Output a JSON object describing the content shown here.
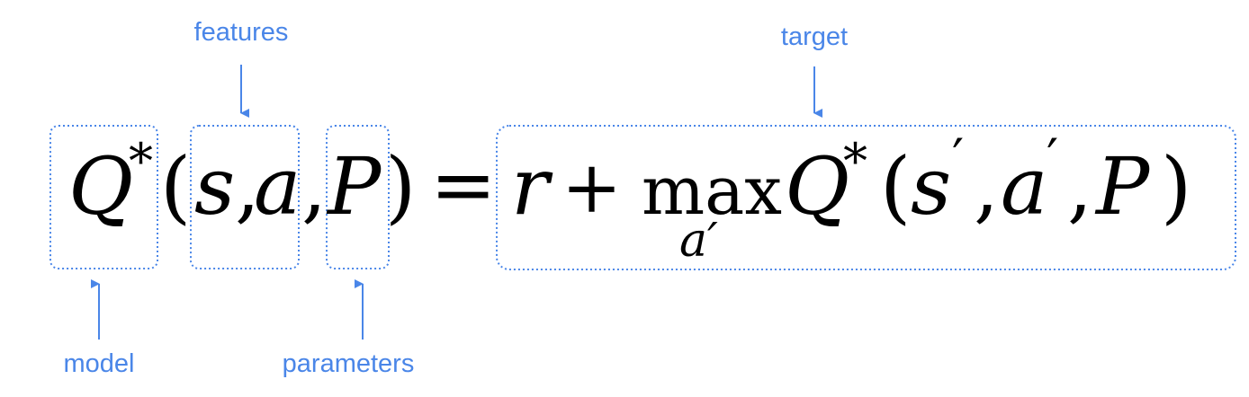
{
  "colors": {
    "annotation": "#4a86e8",
    "equation": "#000000",
    "background": "#ffffff"
  },
  "labels": {
    "features": "features",
    "target": "target",
    "model": "model",
    "parameters": "parameters"
  },
  "equation": {
    "Q": "Q",
    "star": "*",
    "lparen": "(",
    "s": "s",
    "comma": ",",
    "a": "a",
    "P": "P",
    "rparen": ")",
    "equals": "=",
    "r": "r",
    "plus": "+",
    "max": "max",
    "max_sub": "a′",
    "prime": "′"
  }
}
